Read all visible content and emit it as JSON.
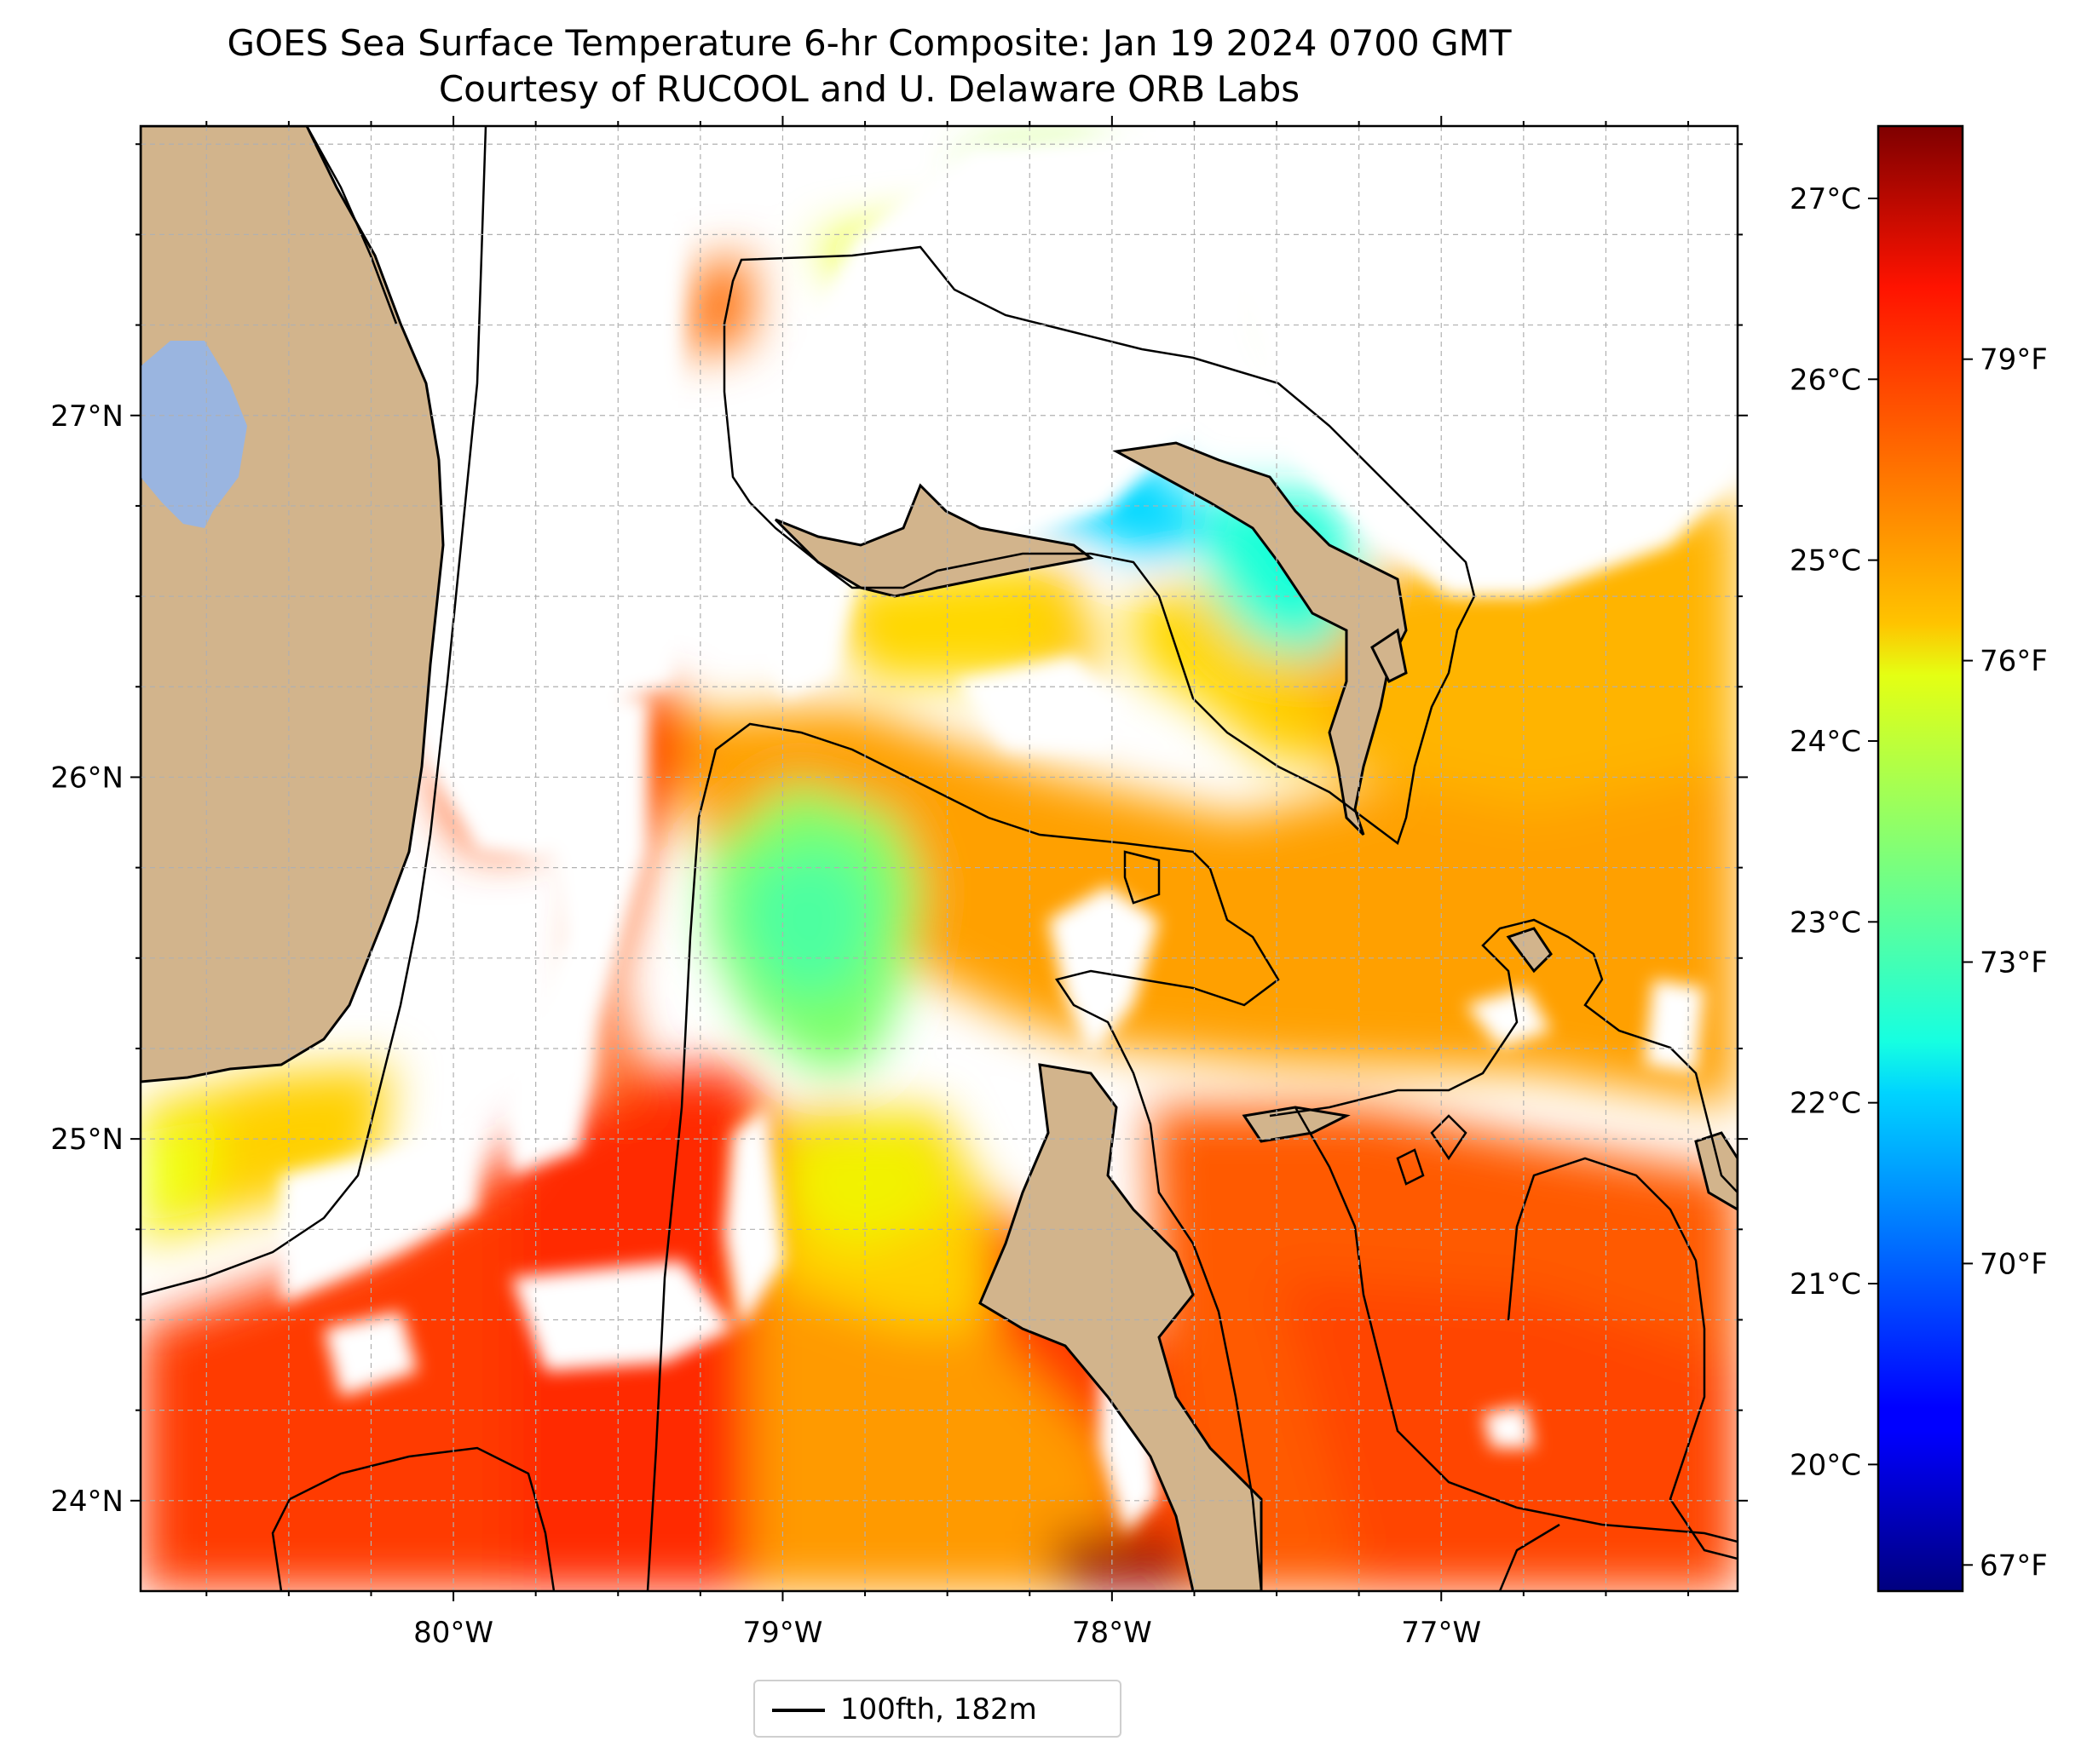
{
  "title": "GOES Sea Surface Temperature 6-hr Composite: Jan 19 2024 0700 GMT",
  "subtitle": "Courtesy of RUCOOL and U. Delaware ORB Labs",
  "map": {
    "lon_range": [
      -80.95,
      -76.1
    ],
    "lat_range": [
      23.75,
      27.8
    ],
    "grid": true,
    "lon_ticks": [
      {
        "value": -80,
        "label": "80°W"
      },
      {
        "value": -79,
        "label": "79°W"
      },
      {
        "value": -78,
        "label": "78°W"
      },
      {
        "value": -77,
        "label": "77°W"
      }
    ],
    "lat_ticks": [
      {
        "value": 24,
        "label": "24°N"
      },
      {
        "value": 25,
        "label": "25°N"
      },
      {
        "value": 26,
        "label": "26°N"
      },
      {
        "value": 27,
        "label": "27°N"
      }
    ],
    "colors": {
      "land": "#d2b48c",
      "lake": "#9ab5e0",
      "contour": "#000000",
      "no_data": "#ffffff"
    }
  },
  "colorbar": {
    "colormap": "jet",
    "range_c": [
      19.3,
      27.4
    ],
    "celsius_ticks": [
      {
        "value": 20,
        "label": "20°C"
      },
      {
        "value": 21,
        "label": "21°C"
      },
      {
        "value": 22,
        "label": "22°C"
      },
      {
        "value": 23,
        "label": "23°C"
      },
      {
        "value": 24,
        "label": "24°C"
      },
      {
        "value": 25,
        "label": "25°C"
      },
      {
        "value": 26,
        "label": "26°C"
      },
      {
        "value": 27,
        "label": "27°C"
      }
    ],
    "fahrenheit_ticks": [
      {
        "value": 67,
        "label": "67°F"
      },
      {
        "value": 70,
        "label": "70°F"
      },
      {
        "value": 73,
        "label": "73°F"
      },
      {
        "value": 76,
        "label": "76°F"
      },
      {
        "value": 79,
        "label": "79°F"
      }
    ]
  },
  "legend": {
    "label": "100fth, 182m",
    "location": "below map, centered"
  }
}
